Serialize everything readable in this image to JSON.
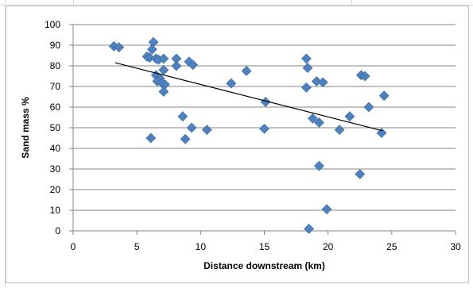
{
  "chart_data": {
    "type": "scatter",
    "xlabel": "Distance  downstream (km)",
    "ylabel": "Sand mass %",
    "xlim": [
      0,
      30
    ],
    "ylim": [
      0,
      100
    ],
    "x_ticks": [
      0,
      5,
      10,
      15,
      20,
      25,
      30
    ],
    "y_ticks": [
      0,
      10,
      20,
      30,
      40,
      50,
      60,
      70,
      80,
      90,
      100
    ],
    "grid": "horizontal",
    "legend": "none",
    "marker": "diamond",
    "marker_color": "#4f81bd",
    "trendline": {
      "type": "linear",
      "x": [
        3.3,
        24.3
      ],
      "y": [
        81.5,
        48.5
      ],
      "color": "#000000"
    },
    "series": [
      {
        "points": [
          [
            3.2,
            89.5
          ],
          [
            3.6,
            89.0
          ],
          [
            5.8,
            84.5
          ],
          [
            6.0,
            84.0
          ],
          [
            6.3,
            91.5
          ],
          [
            6.2,
            88.0
          ],
          [
            6.5,
            83.5
          ],
          [
            6.7,
            83.0
          ],
          [
            7.1,
            83.5
          ],
          [
            7.1,
            78.0
          ],
          [
            6.5,
            75.5
          ],
          [
            6.8,
            74.0
          ],
          [
            6.6,
            72.5
          ],
          [
            7.0,
            71.5
          ],
          [
            7.2,
            71.0
          ],
          [
            7.1,
            67.5
          ],
          [
            6.1,
            45.0
          ],
          [
            8.1,
            83.5
          ],
          [
            8.1,
            80.0
          ],
          [
            9.1,
            82.0
          ],
          [
            9.4,
            80.5
          ],
          [
            8.6,
            55.5
          ],
          [
            9.3,
            50.0
          ],
          [
            8.8,
            44.5
          ],
          [
            10.5,
            49.0
          ],
          [
            12.4,
            71.5
          ],
          [
            13.6,
            77.5
          ],
          [
            15.1,
            62.5
          ],
          [
            15.0,
            49.5
          ],
          [
            18.3,
            83.5
          ],
          [
            18.4,
            79.0
          ],
          [
            18.3,
            69.5
          ],
          [
            18.5,
            1.0
          ],
          [
            18.8,
            54.5
          ],
          [
            19.1,
            72.5
          ],
          [
            19.6,
            72.0
          ],
          [
            19.3,
            52.5
          ],
          [
            19.3,
            31.5
          ],
          [
            19.9,
            10.5
          ],
          [
            20.9,
            49.0
          ],
          [
            21.7,
            55.5
          ],
          [
            22.6,
            75.5
          ],
          [
            22.9,
            75.0
          ],
          [
            23.2,
            60.0
          ],
          [
            22.5,
            27.5
          ],
          [
            24.2,
            47.5
          ],
          [
            24.4,
            65.5
          ]
        ]
      }
    ]
  }
}
